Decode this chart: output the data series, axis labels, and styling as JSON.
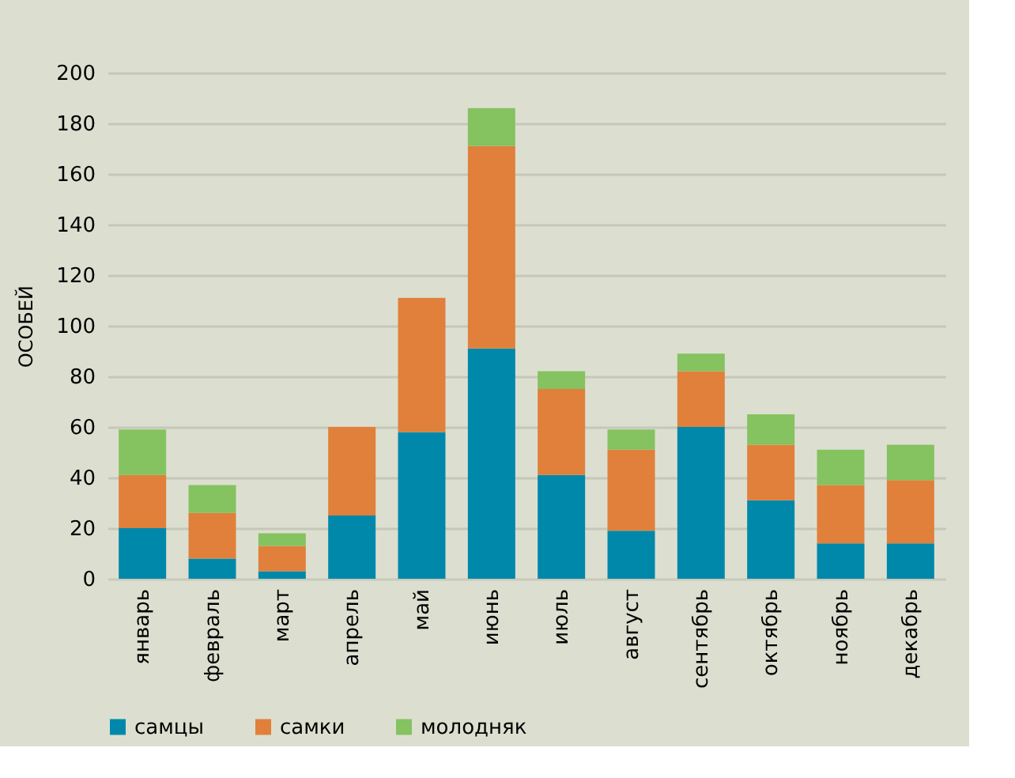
{
  "chart_data": {
    "type": "bar",
    "stacked": true,
    "ylabel": "ОСОБЕЙ",
    "categories": [
      "январь",
      "февраль",
      "март",
      "апрель",
      "май",
      "июнь",
      "июль",
      "август",
      "сентябрь",
      "октябрь",
      "ноябрь",
      "декабрь"
    ],
    "series": [
      {
        "name": "самцы",
        "color": "#0088ab",
        "values": [
          20,
          8,
          3,
          25,
          58,
          91,
          41,
          19,
          60,
          31,
          14,
          14
        ]
      },
      {
        "name": "самки",
        "color": "#e0803a",
        "values": [
          21,
          18,
          10,
          35,
          53,
          80,
          34,
          32,
          22,
          22,
          23,
          25
        ]
      },
      {
        "name": "молодняк",
        "color": "#85c260",
        "values": [
          18,
          11,
          5,
          0,
          0,
          15,
          7,
          8,
          7,
          12,
          14,
          14
        ]
      }
    ],
    "ylim": [
      0,
      200
    ],
    "yticks": [
      0,
      20,
      40,
      60,
      80,
      100,
      120,
      140,
      160,
      180,
      200
    ],
    "grid": "y",
    "legend": "bottom"
  }
}
